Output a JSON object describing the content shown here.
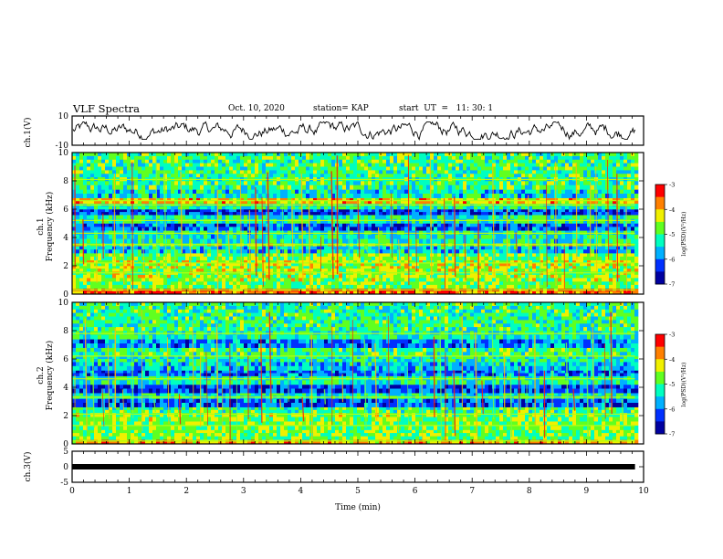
{
  "header": {
    "title": "VLF Spectra",
    "date": "Oct. 10, 2020",
    "station": "station= KAP",
    "start": "start  UT  =   11: 30: 1"
  },
  "chart_data": [
    {
      "type": "line",
      "panel": "ch1-waveform",
      "ylabel": "ch.1(V)",
      "ylim": [
        -10,
        10
      ],
      "y_ticks": [
        "10",
        "-10"
      ],
      "xlim": [
        0,
        10
      ],
      "mean": 0,
      "amplitude_range": [
        -6,
        6
      ]
    },
    {
      "type": "heatmap",
      "panel": "ch1-spectrogram",
      "ylabel_line1": "ch.1",
      "ylabel_line2": "Frequency  (kHz)",
      "ylim": [
        0,
        10
      ],
      "y_ticks": [
        "0",
        "2",
        "4",
        "6",
        "8",
        "10"
      ],
      "xlim": [
        0,
        10
      ],
      "data_end_min": 9.85,
      "bands_khz": [
        {
          "from": 0.0,
          "to": 0.4,
          "level": 0.85
        },
        {
          "from": 0.4,
          "to": 0.9,
          "level": 0.55
        },
        {
          "from": 0.9,
          "to": 1.6,
          "level": 0.6
        },
        {
          "from": 1.6,
          "to": 2.0,
          "level": 0.62
        },
        {
          "from": 2.0,
          "to": 2.4,
          "level": 0.63
        },
        {
          "from": 2.4,
          "to": 2.9,
          "level": 0.55
        },
        {
          "from": 2.9,
          "to": 3.4,
          "level": 0.35
        },
        {
          "from": 3.4,
          "to": 3.6,
          "level": 0.6
        },
        {
          "from": 3.6,
          "to": 4.5,
          "level": 0.42
        },
        {
          "from": 4.5,
          "to": 5.0,
          "level": 0.22
        },
        {
          "from": 5.0,
          "to": 5.6,
          "level": 0.45
        },
        {
          "from": 5.6,
          "to": 6.0,
          "level": 0.2
        },
        {
          "from": 6.0,
          "to": 6.4,
          "level": 0.45
        },
        {
          "from": 6.4,
          "to": 6.8,
          "level": 0.72
        },
        {
          "from": 6.8,
          "to": 7.4,
          "level": 0.4
        },
        {
          "from": 7.4,
          "to": 8.0,
          "level": 0.5
        },
        {
          "from": 8.0,
          "to": 10.0,
          "level": 0.5
        }
      ],
      "lines_khz": [
        0.3,
        1.5,
        2.2,
        3.5,
        4.3,
        5.2,
        6.3,
        6.6,
        8.1
      ]
    },
    {
      "type": "heatmap",
      "panel": "ch2-spectrogram",
      "ylabel_line1": "ch.2",
      "ylabel_line2": "Frequency  (kHz)",
      "ylim": [
        0,
        10
      ],
      "y_ticks": [
        "0",
        "2",
        "4",
        "6",
        "8",
        "10"
      ],
      "xlim": [
        0,
        10
      ],
      "data_end_min": 9.85,
      "bands_khz": [
        {
          "from": 0.0,
          "to": 0.3,
          "level": 0.75
        },
        {
          "from": 0.3,
          "to": 1.0,
          "level": 0.55
        },
        {
          "from": 1.0,
          "to": 1.6,
          "level": 0.55
        },
        {
          "from": 1.6,
          "to": 2.2,
          "level": 0.58
        },
        {
          "from": 2.2,
          "to": 2.6,
          "level": 0.5
        },
        {
          "from": 2.6,
          "to": 3.2,
          "level": 0.22
        },
        {
          "from": 3.2,
          "to": 3.6,
          "level": 0.42
        },
        {
          "from": 3.6,
          "to": 4.2,
          "level": 0.2
        },
        {
          "from": 4.2,
          "to": 4.8,
          "level": 0.45
        },
        {
          "from": 4.8,
          "to": 5.2,
          "level": 0.25
        },
        {
          "from": 5.2,
          "to": 5.8,
          "level": 0.35
        },
        {
          "from": 5.8,
          "to": 6.2,
          "level": 0.45
        },
        {
          "from": 6.2,
          "to": 6.8,
          "level": 0.5
        },
        {
          "from": 6.8,
          "to": 7.4,
          "level": 0.28
        },
        {
          "from": 7.4,
          "to": 8.0,
          "level": 0.45
        },
        {
          "from": 8.0,
          "to": 10.0,
          "level": 0.48
        }
      ],
      "lines_khz": [
        0.2,
        1.3,
        2.1,
        3.3,
        4.6,
        6.2,
        7.8
      ]
    },
    {
      "type": "line",
      "panel": "ch3-waveform",
      "ylabel": "ch.3(V)",
      "ylim": [
        -5,
        5
      ],
      "y_ticks": [
        "5",
        "0",
        "-5"
      ],
      "xlim": [
        0,
        10
      ],
      "xlabel": "Time  (min)",
      "x_ticks": [
        "0",
        "1",
        "2",
        "3",
        "4",
        "5",
        "6",
        "7",
        "8",
        "9",
        "10"
      ],
      "constant_value": 0
    }
  ],
  "colorbars": [
    {
      "panel": "ch1",
      "label": "log(PSD)(V²/Hz)",
      "range": [
        -7,
        -3
      ],
      "ticks": [
        "-3",
        "-4",
        "-5",
        "-6",
        "-7"
      ],
      "colors": [
        "#0000a0",
        "#0030ff",
        "#00b0ff",
        "#00ffc0",
        "#60ff20",
        "#f0f000",
        "#ff8000",
        "#ff0000"
      ]
    },
    {
      "panel": "ch2",
      "label": "log(PSD)(V²/Hz)",
      "range": [
        -7,
        -3
      ],
      "ticks": [
        "-3",
        "-4",
        "-5",
        "-6",
        "-7"
      ],
      "colors": [
        "#0000a0",
        "#0030ff",
        "#00b0ff",
        "#00ffc0",
        "#60ff20",
        "#f0f000",
        "#ff8000",
        "#ff0000"
      ]
    }
  ]
}
